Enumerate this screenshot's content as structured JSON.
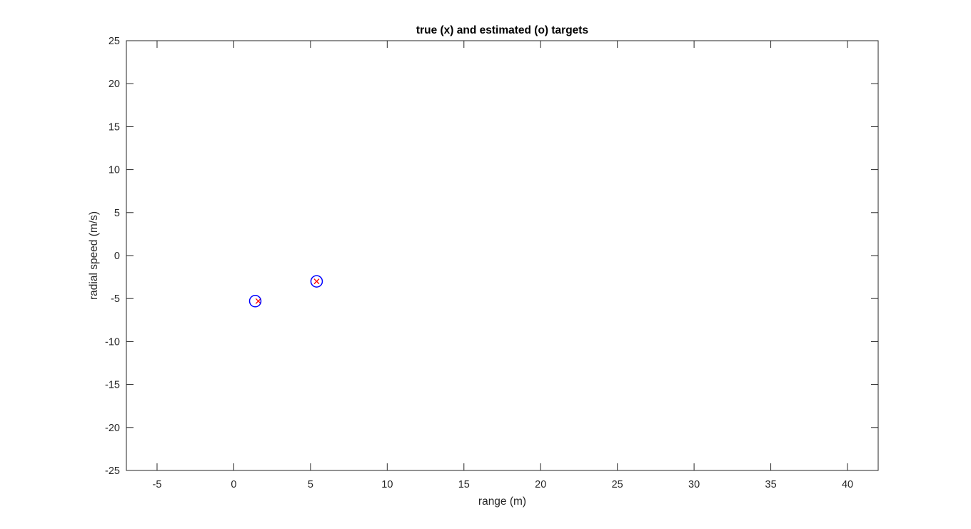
{
  "chart_data": {
    "type": "scatter",
    "title": "true (x) and estimated (o) targets",
    "xlabel": "range (m)",
    "ylabel": "radial speed (m/s)",
    "xlim": [
      -7,
      42
    ],
    "ylim": [
      -25,
      25
    ],
    "xticks": [
      -5,
      0,
      5,
      10,
      15,
      20,
      25,
      30,
      35,
      40
    ],
    "yticks": [
      25,
      20,
      15,
      10,
      5,
      0,
      -5,
      -10,
      -15,
      -20,
      -25
    ],
    "grid": false,
    "series": [
      {
        "marker": "x",
        "color": "#ff0000",
        "points": [
          [
            1.6,
            -5.3
          ],
          [
            5.4,
            -3.0
          ]
        ]
      },
      {
        "marker": "o",
        "color": "#0000ff",
        "points": [
          [
            1.4,
            -5.3
          ],
          [
            5.4,
            -3.0
          ]
        ]
      }
    ]
  }
}
